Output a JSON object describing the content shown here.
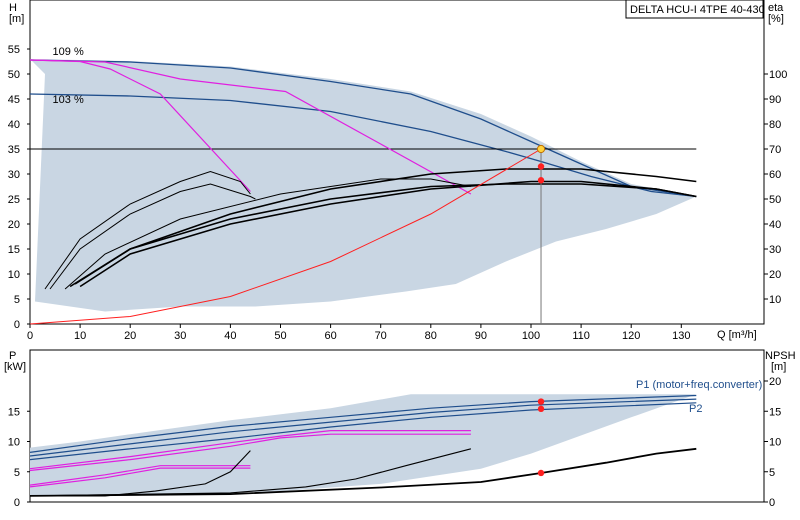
{
  "colors": {
    "envelope_fill": "#c9d6e3",
    "envelope_edge": "#1f4e8c",
    "curve_blue": "#1f4e8c",
    "magenta": "#e020e0",
    "red": "#ff2020",
    "black": "#000000",
    "grid": "#ffffff",
    "operating_point": "#ffd23c"
  },
  "pump_title": "DELTA HCU-I 4TPE 40-430",
  "chart_data": [
    {
      "type": "line",
      "id": "head_efficiency",
      "x_axis": {
        "title": "Q [m³/h]",
        "range": [
          0,
          135
        ],
        "ticks": [
          0,
          10,
          20,
          30,
          40,
          50,
          60,
          70,
          80,
          90,
          100,
          110,
          120,
          130
        ]
      },
      "y_axis_left": {
        "title_line1": "H",
        "title_line2": "[m]",
        "range": [
          0,
          60
        ],
        "ticks": [
          0,
          5,
          10,
          15,
          20,
          25,
          30,
          35,
          40,
          45,
          50,
          55
        ]
      },
      "y_axis_right": {
        "title_line1": "eta",
        "title_line2": "[%]",
        "range": [
          0,
          120
        ],
        "ticks": [
          10,
          20,
          30,
          40,
          50,
          60,
          70,
          80,
          90,
          100
        ]
      },
      "grid": false,
      "operating_point": {
        "q": 102,
        "h": 35
      },
      "duty_line_h": 35,
      "envelope": {
        "top": [
          [
            0,
            53
          ],
          [
            20,
            52.6
          ],
          [
            40,
            51.5
          ],
          [
            60,
            49
          ],
          [
            76,
            46.5
          ],
          [
            90,
            42
          ],
          [
            100,
            37.5
          ],
          [
            110,
            32.5
          ],
          [
            120,
            28
          ],
          [
            133,
            25.5
          ]
        ],
        "bottom": [
          [
            133,
            25.5
          ],
          [
            125,
            22
          ],
          [
            115,
            19
          ],
          [
            105,
            16.5
          ],
          [
            95,
            12.5
          ],
          [
            85,
            8
          ],
          [
            75,
            6.5
          ],
          [
            60,
            4.5
          ],
          [
            45,
            3.5
          ],
          [
            30,
            3.5
          ],
          [
            15,
            2.5
          ],
          [
            1,
            4.5
          ],
          [
            3,
            50
          ]
        ]
      },
      "head_curves": [
        {
          "label": "109 %",
          "points": [
            [
              0,
              52.8
            ],
            [
              20,
              52.4
            ],
            [
              40,
              51.2
            ],
            [
              60,
              48.5
            ],
            [
              76,
              46
            ],
            [
              90,
              41
            ],
            [
              100,
              36.5
            ],
            [
              110,
              32
            ],
            [
              120,
              27.5
            ],
            [
              133,
              25.5
            ]
          ]
        },
        {
          "label": "103 %",
          "points": [
            [
              0,
              46
            ],
            [
              20,
              45.6
            ],
            [
              40,
              44.7
            ],
            [
              60,
              42.5
            ],
            [
              80,
              38.5
            ],
            [
              95,
              34.5
            ],
            [
              102,
              32.5
            ],
            [
              112,
              29.5
            ],
            [
              124,
              26.5
            ],
            [
              133,
              25.5
            ]
          ]
        },
        {
          "label": "",
          "points": [
            [
              0,
              35
            ],
            [
              133,
              35
            ]
          ]
        }
      ],
      "magenta_curves": [
        [
          [
            0,
            52.8
          ],
          [
            10,
            52.5
          ],
          [
            16,
            51
          ],
          [
            26,
            46
          ],
          [
            44,
            26.5
          ]
        ],
        [
          [
            0,
            52.8
          ],
          [
            15,
            52.4
          ],
          [
            30,
            49
          ],
          [
            51,
            46.5
          ],
          [
            70,
            36
          ],
          [
            88,
            26
          ]
        ]
      ],
      "red_curve": [
        [
          0,
          0
        ],
        [
          20,
          1.5
        ],
        [
          40,
          5.5
        ],
        [
          60,
          12.5
        ],
        [
          80,
          22
        ],
        [
          102,
          35
        ]
      ],
      "efficiency_curves": [
        [
          [
            3,
            14
          ],
          [
            10,
            34
          ],
          [
            20,
            48
          ],
          [
            30,
            57
          ],
          [
            36,
            61
          ],
          [
            42,
            57
          ],
          [
            44,
            52
          ]
        ],
        [
          [
            4,
            14
          ],
          [
            10,
            30
          ],
          [
            20,
            44
          ],
          [
            30,
            53
          ],
          [
            36,
            56
          ],
          [
            44,
            51
          ],
          [
            45,
            50
          ]
        ],
        [
          [
            7,
            14
          ],
          [
            15,
            28
          ],
          [
            30,
            42
          ],
          [
            50,
            52
          ],
          [
            70,
            58
          ],
          [
            80,
            58
          ],
          [
            88,
            55
          ]
        ],
        [
          [
            8,
            15
          ],
          [
            20,
            30
          ],
          [
            40,
            44
          ],
          [
            60,
            54
          ],
          [
            80,
            60
          ],
          [
            95,
            62
          ],
          [
            110,
            62
          ],
          [
            125,
            59
          ],
          [
            133,
            57
          ]
        ],
        [
          [
            9,
            16
          ],
          [
            20,
            30
          ],
          [
            40,
            42
          ],
          [
            60,
            50
          ],
          [
            80,
            55
          ],
          [
            95,
            56
          ],
          [
            110,
            56
          ],
          [
            125,
            54
          ],
          [
            133,
            51
          ]
        ],
        [
          [
            10,
            15
          ],
          [
            20,
            28
          ],
          [
            40,
            40
          ],
          [
            60,
            48
          ],
          [
            80,
            54
          ],
          [
            100,
            57
          ],
          [
            110,
            57
          ],
          [
            125,
            54
          ],
          [
            133,
            51
          ]
        ]
      ],
      "efficiency_points": [
        {
          "q": 102,
          "eta": 63
        },
        {
          "q": 102,
          "eta": 57.5
        }
      ]
    },
    {
      "type": "line",
      "id": "power_npsh",
      "x_axis": {
        "range": [
          0,
          135
        ]
      },
      "y_axis_left": {
        "title_line1": "P",
        "title_line2": "[kW]",
        "range": [
          0,
          22
        ],
        "ticks": [
          0,
          5,
          10,
          15
        ]
      },
      "y_axis_right": {
        "title_line1": "NPSH",
        "title_line2": "[m]",
        "range": [
          0,
          22
        ],
        "ticks": [
          0,
          5,
          10,
          15,
          20
        ]
      },
      "grid": false,
      "envelope": {
        "top": [
          [
            0,
            9
          ],
          [
            10,
            10
          ],
          [
            20,
            11.2
          ],
          [
            40,
            13.5
          ],
          [
            60,
            15.5
          ],
          [
            76,
            17.8
          ],
          [
            133,
            17.8
          ]
        ],
        "bottom": [
          [
            133,
            17.8
          ],
          [
            120,
            14
          ],
          [
            100,
            8
          ],
          [
            90,
            5.5
          ],
          [
            70,
            3
          ],
          [
            50,
            1.8
          ],
          [
            20,
            1
          ],
          [
            0,
            1
          ]
        ]
      },
      "power_curves": [
        {
          "label": "P1 (motor+freq.converter)",
          "points": [
            [
              0,
              8.2
            ],
            [
              20,
              10.5
            ],
            [
              40,
              12.5
            ],
            [
              60,
              14
            ],
            [
              80,
              15.5
            ],
            [
              100,
              16.6
            ],
            [
              133,
              17.6
            ]
          ]
        },
        {
          "label": "",
          "points": [
            [
              0,
              7.6
            ],
            [
              20,
              9.6
            ],
            [
              40,
              11.6
            ],
            [
              60,
              13.2
            ],
            [
              80,
              14.8
            ],
            [
              100,
              16
            ],
            [
              133,
              17
            ]
          ]
        },
        {
          "label": "P2",
          "points": [
            [
              0,
              7
            ],
            [
              20,
              8.8
            ],
            [
              40,
              10.5
            ],
            [
              60,
              12.4
            ],
            [
              80,
              14
            ],
            [
              100,
              15.2
            ],
            [
              133,
              16.4
            ]
          ]
        }
      ],
      "magenta_curves": [
        [
          [
            0,
            5.5
          ],
          [
            20,
            7.5
          ],
          [
            40,
            9.8
          ],
          [
            50,
            10.9
          ],
          [
            60,
            11.8
          ],
          [
            88,
            11.8
          ]
        ],
        [
          [
            0,
            5.2
          ],
          [
            20,
            7
          ],
          [
            40,
            9.2
          ],
          [
            50,
            10.6
          ],
          [
            60,
            11.2
          ],
          [
            88,
            11.2
          ]
        ],
        [
          [
            0,
            2.8
          ],
          [
            15,
            4.5
          ],
          [
            26,
            6
          ],
          [
            44,
            6
          ]
        ],
        [
          [
            0,
            2.5
          ],
          [
            15,
            4
          ],
          [
            26,
            5.6
          ],
          [
            44,
            5.6
          ]
        ]
      ],
      "black_curves": [
        [
          [
            0,
            1
          ],
          [
            15,
            1
          ],
          [
            25,
            1.8
          ],
          [
            35,
            3
          ],
          [
            40,
            5
          ],
          [
            44,
            8.5
          ]
        ],
        [
          [
            0,
            1
          ],
          [
            40,
            1.5
          ],
          [
            55,
            2.5
          ],
          [
            65,
            3.8
          ],
          [
            75,
            6
          ],
          [
            88,
            8.8
          ]
        ],
        [
          [
            0,
            1
          ],
          [
            40,
            1.3
          ],
          [
            70,
            2.4
          ],
          [
            90,
            3.3
          ],
          [
            102,
            4.8
          ],
          [
            115,
            6.5
          ],
          [
            125,
            8
          ],
          [
            133,
            8.8
          ]
        ]
      ],
      "points": [
        {
          "q": 102,
          "p": 16.6
        },
        {
          "q": 102,
          "p": 15.4
        },
        {
          "q": 102,
          "p": 4.8
        }
      ]
    }
  ]
}
